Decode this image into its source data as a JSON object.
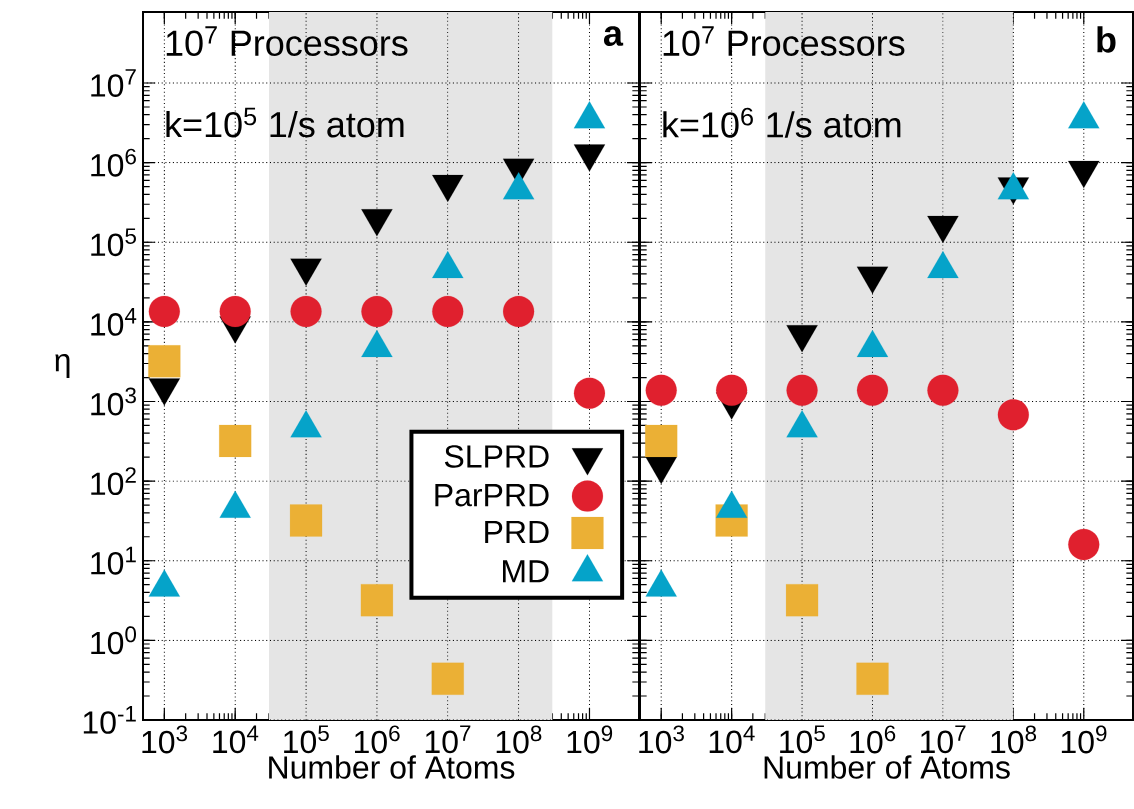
{
  "chart_data": [
    {
      "type": "scatter",
      "xlabel": "Number of Atoms",
      "ylabel": "η",
      "annotations": [
        "10$^{7}$ Processors",
        "k=10$^{5}$ 1/s atom",
        "a"
      ],
      "xlim": [
        500,
        5000000000
      ],
      "ylim": [
        0.1,
        78000000
      ],
      "xticks": [
        {
          "value": 1000,
          "label": "10$^{3}$"
        },
        {
          "value": 10000,
          "label": "10$^{4}$"
        },
        {
          "value": 100000,
          "label": "10$^{5}$"
        },
        {
          "value": 1000000,
          "label": "10$^{6}$"
        },
        {
          "value": 10000000,
          "label": "10$^{7}$"
        },
        {
          "value": 100000000,
          "label": "10$^{8}$"
        },
        {
          "value": 1000000000,
          "label": "10$^{9}$"
        }
      ],
      "yticks": [
        {
          "value": 0.1,
          "label": "10$^{-1}$"
        },
        {
          "value": 1,
          "label": "10$^{0}$"
        },
        {
          "value": 10,
          "label": "10$^{1}$"
        },
        {
          "value": 100,
          "label": "10$^{2}$"
        },
        {
          "value": 1000,
          "label": "10$^{3}$"
        },
        {
          "value": 10000,
          "label": "10$^{4}$"
        },
        {
          "value": 100000,
          "label": "10$^{5}$"
        },
        {
          "value": 1000000,
          "label": "10$^{6}$"
        },
        {
          "value": 10000000,
          "label": "10$^{7}$"
        }
      ],
      "log": "xy",
      "grid": true,
      "legend": "bottom right",
      "bands": [
        {
          "axis": "x",
          "from": 30000,
          "to": 300000000,
          "color": "#e5e5e5"
        }
      ],
      "series": [
        {
          "name": "SLPRD",
          "color": "#000000",
          "marker": "triangle-down",
          "x": [
            1000,
            10000,
            100000,
            1000000,
            10000000,
            100000000,
            1000000000
          ],
          "values": [
            1500,
            9000,
            48000,
            200000,
            540000,
            860000,
            1300000
          ]
        },
        {
          "name": "ParPRD",
          "color": "#e0202e",
          "marker": "circle",
          "x": [
            1000,
            10000,
            100000,
            1000000,
            10000000,
            100000000,
            1000000000
          ],
          "values": [
            13500,
            13500,
            13500,
            13500,
            13500,
            13500,
            1270
          ]
        },
        {
          "name": "PRD",
          "color": "#ebb035",
          "marker": "square",
          "x": [
            1000,
            10000,
            100000,
            1000000,
            10000000
          ],
          "values": [
            3200,
            320,
            32,
            3.2,
            0.33
          ]
        },
        {
          "name": "MD",
          "color": "#05a3c9",
          "marker": "triangle",
          "x": [
            1000,
            10000,
            100000,
            1000000,
            10000000,
            100000000,
            1000000000
          ],
          "values": [
            4.6,
            45,
            460,
            4700,
            46000,
            450000,
            3500000
          ]
        }
      ]
    },
    {
      "type": "scatter",
      "xlabel": "Number of Atoms",
      "annotations": [
        "10$^{7}$ Processors",
        "k=10$^{6}$ 1/s atom",
        "b"
      ],
      "xlim": [
        500,
        5000000000
      ],
      "ylim": [
        0.1,
        78000000
      ],
      "xticks": [
        {
          "value": 1000,
          "label": "10$^{3}$"
        },
        {
          "value": 10000,
          "label": "10$^{4}$"
        },
        {
          "value": 100000,
          "label": "10$^{5}$"
        },
        {
          "value": 1000000,
          "label": "10$^{6}$"
        },
        {
          "value": 10000000,
          "label": "10$^{7}$"
        },
        {
          "value": 100000000,
          "label": "10$^{8}$"
        },
        {
          "value": 1000000000,
          "label": "10$^{9}$"
        }
      ],
      "yticks": [
        {
          "value": 0.1,
          "label": null
        },
        {
          "value": 1,
          "label": null
        },
        {
          "value": 10,
          "label": null
        },
        {
          "value": 100,
          "label": null
        },
        {
          "value": 1000,
          "label": null
        },
        {
          "value": 10000,
          "label": null
        },
        {
          "value": 100000,
          "label": null
        },
        {
          "value": 1000000,
          "label": null
        },
        {
          "value": 10000000,
          "label": null
        }
      ],
      "log": "xy",
      "grid": true,
      "tick_labels": "x",
      "bands": [
        {
          "axis": "x",
          "from": 30000,
          "to": 100000000,
          "color": "#e5e5e5"
        }
      ],
      "series": [
        {
          "color": "#000000",
          "marker": "triangle-down",
          "x": [
            1000,
            10000,
            100000,
            1000000,
            10000000,
            100000000,
            1000000000
          ],
          "values": [
            155,
            1000,
            7000,
            38000,
            165000,
            500000,
            810000
          ]
        },
        {
          "color": "#e0202e",
          "marker": "circle",
          "x": [
            1000,
            10000,
            100000,
            1000000,
            10000000,
            100000000,
            1000000000
          ],
          "values": [
            1380,
            1380,
            1380,
            1380,
            1380,
            680,
            16
          ]
        },
        {
          "color": "#ebb035",
          "marker": "square",
          "x": [
            1000,
            10000,
            100000,
            1000000
          ],
          "values": [
            320,
            32,
            3.2,
            0.33
          ]
        },
        {
          "color": "#05a3c9",
          "marker": "triangle",
          "x": [
            1000,
            10000,
            100000,
            1000000,
            10000000,
            100000000,
            1000000000
          ],
          "values": [
            4.6,
            45,
            460,
            4700,
            46000,
            450000,
            3500000
          ]
        }
      ]
    }
  ]
}
